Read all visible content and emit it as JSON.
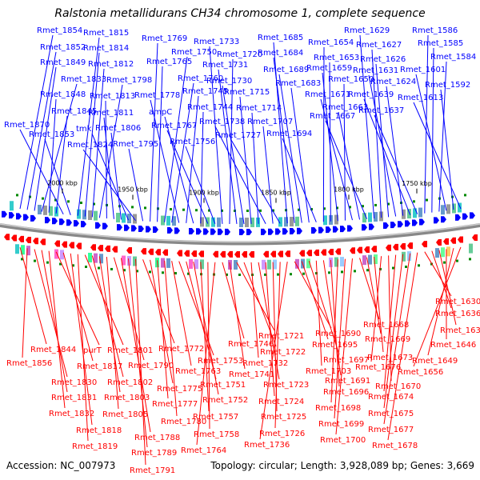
{
  "title": "Ralstonia metallidurans CH34 chromosome 1, complete sequence",
  "footer": {
    "accession": "Accession: NC_007973",
    "stats": "Topology: circular; Length: 3,928,089 bp; Genes: 3,669"
  },
  "scale_ticks": [
    "2000 kbp",
    "1950 kbp",
    "1900 kbp",
    "1850 kbp",
    "1800 kbp",
    "1750 kbp"
  ],
  "colors": {
    "forward": "#0000ff",
    "reverse": "#ff0000",
    "backbone": "#888888",
    "tick": "#008800"
  },
  "forward_labels": [
    "Rmet_1854",
    "Rmet_1852",
    "Rmet_1849",
    "Rmet_1833",
    "Rmet_1848",
    "Rmet_1845",
    "Rmet_1870",
    "Rmet_1853",
    "Rmet_1815",
    "Rmet_1814",
    "Rmet_1812",
    "Rmet_1798",
    "Rmet_1813",
    "Rmet_1811",
    "Rmet_1806",
    "tmk",
    "Rmet_1824",
    "Rmet_1795",
    "Rmet_1769",
    "Rmet_1765",
    "Rmet_1750",
    "Rmet_1760",
    "Rmet_1778",
    "Rmet_1745",
    "ampC",
    "Rmet_1744",
    "Rmet_1767",
    "Rmet_1756",
    "Rmet_1733",
    "Rmet_1720",
    "Rmet_1731",
    "Rmet_1730",
    "Rmet_1715",
    "Rmet_1714",
    "Rmet_1738",
    "Rmet_1707",
    "Rmet_1727",
    "Rmet_1685",
    "Rmet_1684",
    "Rmet_1689",
    "Rmet_1683",
    "Rmet_1694",
    "Rmet_1654",
    "Rmet_1653",
    "Rmet_1659",
    "Rmet_1650",
    "Rmet_1671",
    "Rmet_1663",
    "Rmet_1667",
    "Rmet_1629",
    "Rmet_1627",
    "Rmet_1626",
    "Rmet_1631",
    "Rmet_1624",
    "Rmet_1639",
    "Rmet_1637",
    "Rmet_1586",
    "Rmet_1585",
    "Rmet_1584",
    "Rmet_1601",
    "Rmet_1592",
    "Rmet_1613"
  ],
  "reverse_labels": [
    "Rmet_1844",
    "Rmet_1856",
    "Rmet_1830",
    "Rmet_1831",
    "Rmet_1832",
    "purT",
    "Rmet_1817",
    "Rmet_1818",
    "Rmet_1819",
    "Rmet_1801",
    "Rmet_1802",
    "Rmet_1803",
    "Rmet_1805",
    "Rmet_1790",
    "Rmet_1788",
    "Rmet_1789",
    "Rmet_1791",
    "Rmet_1772",
    "Rmet_1775",
    "Rmet_1777",
    "Rmet_1780",
    "Rmet_1763",
    "Rmet_1753",
    "Rmet_1751",
    "Rmet_1752",
    "Rmet_1757",
    "Rmet_1758",
    "Rmet_1764",
    "Rmet_1746",
    "Rmet_1741",
    "Rmet_1721",
    "Rmet_1722",
    "Rmet_1732",
    "Rmet_1723",
    "Rmet_1724",
    "Rmet_1725",
    "Rmet_1726",
    "Rmet_1736",
    "Rmet_1690",
    "Rmet_1695",
    "Rmet_1697",
    "Rmet_1703",
    "Rmet_1691",
    "Rmet_1696",
    "Rmet_1698",
    "Rmet_1699",
    "Rmet_1700",
    "Rmet_1668",
    "Rmet_1669",
    "Rmet_1673",
    "Rmet_1676",
    "Rmet_1670",
    "Rmet_1674",
    "Rmet_1675",
    "Rmet_1677",
    "Rmet_1678",
    "Rmet_1630",
    "Rmet_1636",
    "Rmet_1638",
    "Rmet_1646",
    "Rmet_1649",
    "Rmet_1656"
  ]
}
